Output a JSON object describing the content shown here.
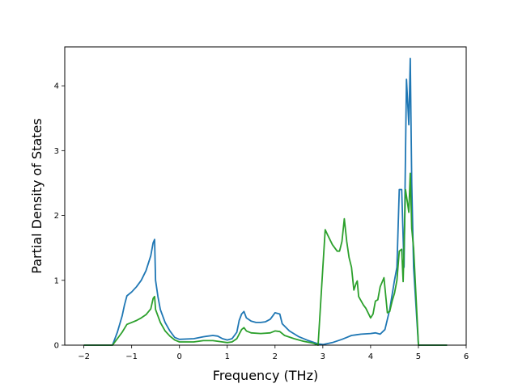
{
  "chart_data": {
    "type": "line",
    "title": "",
    "xlabel": "Frequency (THz)",
    "ylabel": "Partial Density of States",
    "xlim": [
      -2.4,
      6.0
    ],
    "ylim": [
      0,
      4.6
    ],
    "xticks": [
      -2,
      -1,
      0,
      1,
      2,
      3,
      4,
      5,
      6
    ],
    "yticks": [
      0,
      1,
      2,
      3,
      4
    ],
    "grid": false,
    "legend": "none",
    "series": [
      {
        "color": "#1f77b4",
        "points": [
          [
            -2.0,
            0.0
          ],
          [
            -1.4,
            0.0
          ],
          [
            -1.3,
            0.2
          ],
          [
            -1.2,
            0.45
          ],
          [
            -1.15,
            0.62
          ],
          [
            -1.1,
            0.76
          ],
          [
            -1.0,
            0.82
          ],
          [
            -0.9,
            0.9
          ],
          [
            -0.8,
            1.0
          ],
          [
            -0.7,
            1.15
          ],
          [
            -0.6,
            1.38
          ],
          [
            -0.55,
            1.58
          ],
          [
            -0.52,
            1.63
          ],
          [
            -0.5,
            1.0
          ],
          [
            -0.45,
            0.75
          ],
          [
            -0.4,
            0.55
          ],
          [
            -0.3,
            0.35
          ],
          [
            -0.2,
            0.22
          ],
          [
            -0.1,
            0.12
          ],
          [
            0.0,
            0.09
          ],
          [
            0.3,
            0.1
          ],
          [
            0.5,
            0.13
          ],
          [
            0.7,
            0.15
          ],
          [
            0.8,
            0.14
          ],
          [
            0.9,
            0.1
          ],
          [
            1.0,
            0.08
          ],
          [
            1.1,
            0.1
          ],
          [
            1.2,
            0.2
          ],
          [
            1.25,
            0.38
          ],
          [
            1.3,
            0.48
          ],
          [
            1.35,
            0.52
          ],
          [
            1.4,
            0.42
          ],
          [
            1.5,
            0.37
          ],
          [
            1.6,
            0.35
          ],
          [
            1.7,
            0.35
          ],
          [
            1.8,
            0.36
          ],
          [
            1.9,
            0.4
          ],
          [
            1.95,
            0.45
          ],
          [
            2.0,
            0.5
          ],
          [
            2.1,
            0.48
          ],
          [
            2.15,
            0.33
          ],
          [
            2.3,
            0.22
          ],
          [
            2.5,
            0.13
          ],
          [
            2.7,
            0.07
          ],
          [
            2.9,
            0.02
          ],
          [
            3.0,
            0.01
          ],
          [
            3.2,
            0.04
          ],
          [
            3.4,
            0.09
          ],
          [
            3.5,
            0.12
          ],
          [
            3.6,
            0.15
          ],
          [
            3.7,
            0.16
          ],
          [
            3.8,
            0.17
          ],
          [
            4.0,
            0.18
          ],
          [
            4.1,
            0.19
          ],
          [
            4.2,
            0.17
          ],
          [
            4.3,
            0.24
          ],
          [
            4.4,
            0.55
          ],
          [
            4.5,
            1.0
          ],
          [
            4.55,
            1.2
          ],
          [
            4.6,
            2.4
          ],
          [
            4.65,
            2.4
          ],
          [
            4.7,
            1.2
          ],
          [
            4.75,
            4.1
          ],
          [
            4.8,
            3.4
          ],
          [
            4.83,
            4.42
          ],
          [
            4.86,
            2.5
          ],
          [
            4.9,
            1.2
          ],
          [
            5.0,
            0.0
          ],
          [
            5.6,
            0.0
          ]
        ]
      },
      {
        "color": "#2ca02c",
        "points": [
          [
            -2.0,
            0.0
          ],
          [
            -1.4,
            0.0
          ],
          [
            -1.3,
            0.1
          ],
          [
            -1.2,
            0.2
          ],
          [
            -1.1,
            0.32
          ],
          [
            -1.0,
            0.35
          ],
          [
            -0.9,
            0.38
          ],
          [
            -0.8,
            0.42
          ],
          [
            -0.7,
            0.47
          ],
          [
            -0.6,
            0.56
          ],
          [
            -0.55,
            0.72
          ],
          [
            -0.52,
            0.75
          ],
          [
            -0.5,
            0.55
          ],
          [
            -0.4,
            0.35
          ],
          [
            -0.3,
            0.22
          ],
          [
            -0.2,
            0.14
          ],
          [
            -0.1,
            0.08
          ],
          [
            0.0,
            0.05
          ],
          [
            0.3,
            0.05
          ],
          [
            0.5,
            0.07
          ],
          [
            0.7,
            0.07
          ],
          [
            0.9,
            0.05
          ],
          [
            1.0,
            0.04
          ],
          [
            1.1,
            0.05
          ],
          [
            1.2,
            0.1
          ],
          [
            1.3,
            0.24
          ],
          [
            1.35,
            0.27
          ],
          [
            1.4,
            0.22
          ],
          [
            1.5,
            0.19
          ],
          [
            1.7,
            0.18
          ],
          [
            1.9,
            0.19
          ],
          [
            2.0,
            0.22
          ],
          [
            2.1,
            0.21
          ],
          [
            2.2,
            0.15
          ],
          [
            2.4,
            0.1
          ],
          [
            2.6,
            0.06
          ],
          [
            2.8,
            0.03
          ],
          [
            2.9,
            0.0
          ],
          [
            3.0,
            1.2
          ],
          [
            3.05,
            1.78
          ],
          [
            3.1,
            1.7
          ],
          [
            3.2,
            1.55
          ],
          [
            3.3,
            1.45
          ],
          [
            3.35,
            1.45
          ],
          [
            3.4,
            1.6
          ],
          [
            3.45,
            1.95
          ],
          [
            3.5,
            1.6
          ],
          [
            3.55,
            1.35
          ],
          [
            3.6,
            1.2
          ],
          [
            3.65,
            0.85
          ],
          [
            3.7,
            0.96
          ],
          [
            3.72,
            0.99
          ],
          [
            3.75,
            0.75
          ],
          [
            3.85,
            0.62
          ],
          [
            3.9,
            0.57
          ],
          [
            4.0,
            0.42
          ],
          [
            4.05,
            0.48
          ],
          [
            4.1,
            0.68
          ],
          [
            4.15,
            0.7
          ],
          [
            4.2,
            0.9
          ],
          [
            4.28,
            1.04
          ],
          [
            4.35,
            0.5
          ],
          [
            4.4,
            0.52
          ],
          [
            4.45,
            0.68
          ],
          [
            4.5,
            0.8
          ],
          [
            4.55,
            1.0
          ],
          [
            4.6,
            1.45
          ],
          [
            4.65,
            1.48
          ],
          [
            4.68,
            0.98
          ],
          [
            4.7,
            1.5
          ],
          [
            4.73,
            2.4
          ],
          [
            4.77,
            2.2
          ],
          [
            4.8,
            2.05
          ],
          [
            4.83,
            2.65
          ],
          [
            4.86,
            1.8
          ],
          [
            4.9,
            1.5
          ],
          [
            5.0,
            0.0
          ],
          [
            5.6,
            0.0
          ]
        ]
      }
    ]
  }
}
